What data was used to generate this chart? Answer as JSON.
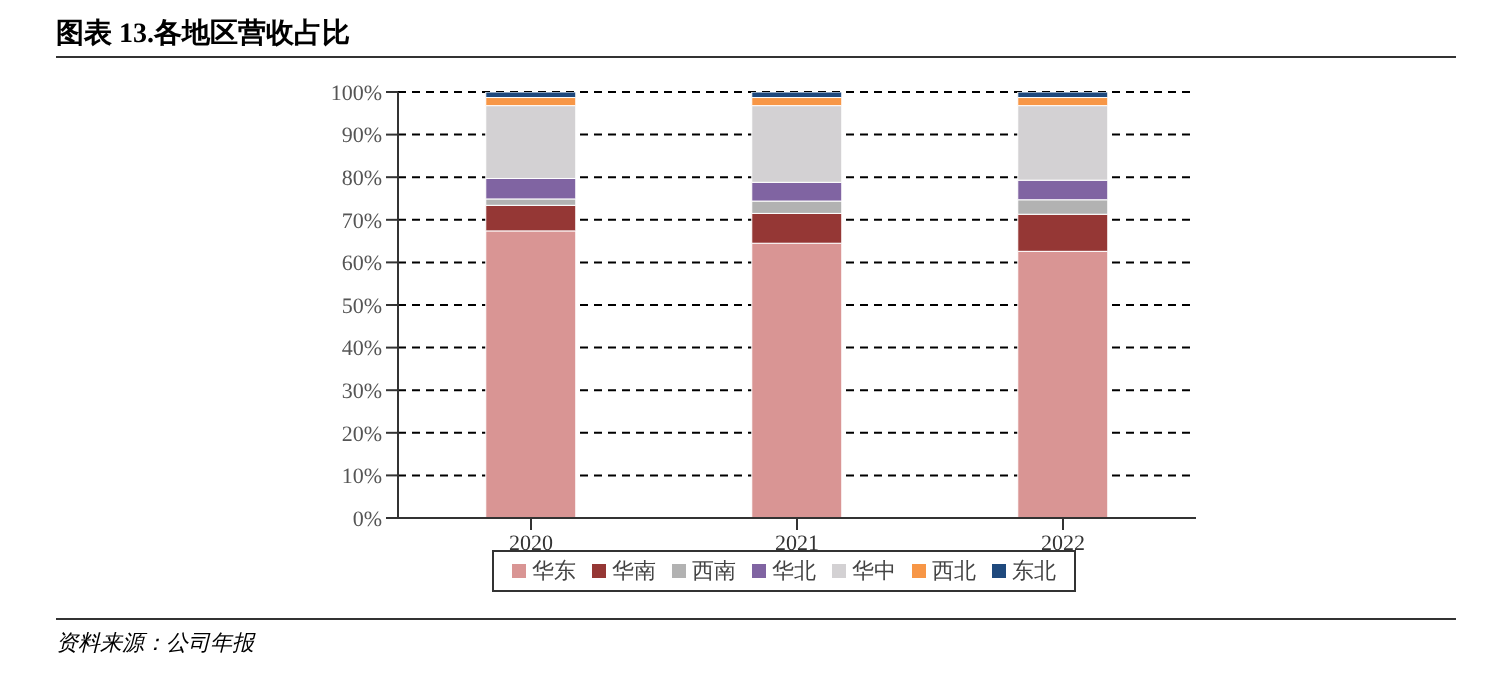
{
  "chart_data": {
    "type": "bar",
    "title": "图表 13.各地区营收占比",
    "stacked": true,
    "categories": [
      "2020",
      "2021",
      "2022"
    ],
    "series": [
      {
        "name": "华东",
        "color": "#d99594",
        "values": [
          67.4,
          64.5,
          62.6
        ]
      },
      {
        "name": "华南",
        "color": "#953735",
        "values": [
          6.0,
          7.0,
          8.7
        ]
      },
      {
        "name": "西南",
        "color": "#b2b2b2",
        "values": [
          1.5,
          2.9,
          3.4
        ]
      },
      {
        "name": "华北",
        "color": "#8064a2",
        "values": [
          4.8,
          4.4,
          4.6
        ]
      },
      {
        "name": "华中",
        "color": "#d3d1d3",
        "values": [
          17.1,
          18.0,
          17.5
        ]
      },
      {
        "name": "西北",
        "color": "#f79646",
        "values": [
          1.9,
          1.9,
          1.9
        ]
      },
      {
        "name": "东北",
        "color": "#1f497d",
        "values": [
          1.3,
          1.3,
          1.3
        ]
      }
    ],
    "ylim": [
      0,
      100
    ],
    "yticks": [
      {
        "value": 0,
        "label": "0%"
      },
      {
        "value": 10,
        "label": "10%"
      },
      {
        "value": 20,
        "label": "20%"
      },
      {
        "value": 30,
        "label": "30%"
      },
      {
        "value": 40,
        "label": "40%"
      },
      {
        "value": 50,
        "label": "50%"
      },
      {
        "value": 60,
        "label": "60%"
      },
      {
        "value": 70,
        "label": "70%"
      },
      {
        "value": 80,
        "label": "80%"
      },
      {
        "value": 90,
        "label": "90%"
      },
      {
        "value": 100,
        "label": "100%"
      }
    ],
    "grid": "y",
    "legend": "bottom",
    "annotations": [
      "资料来源：公司年报"
    ]
  }
}
